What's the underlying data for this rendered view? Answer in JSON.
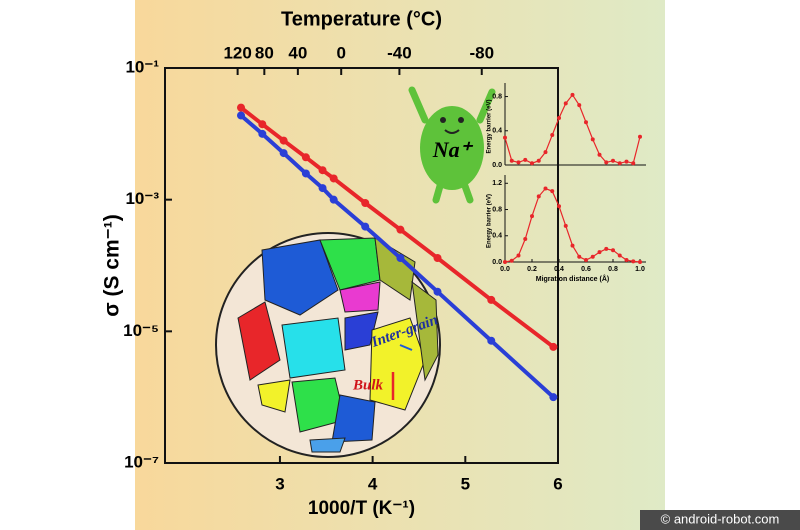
{
  "chart_data": [
    {
      "type": "line",
      "xlabel": "1000/T (K⁻¹)",
      "ylabel": "σ (S cm⁻¹)",
      "x2label": "Temperature (°C)",
      "xlim": [
        1.76,
        6
      ],
      "ylim": [
        1e-07,
        0.1
      ],
      "log_y": true,
      "xticks": [
        3,
        4,
        5,
        6
      ],
      "yticks": [
        {
          "value": 0.1,
          "label": "10⁻¹"
        },
        {
          "value": 0.001,
          "label": "10⁻³"
        },
        {
          "value": 1e-05,
          "label": "10⁻⁵"
        },
        {
          "value": 1e-07,
          "label": "10⁻⁷"
        }
      ],
      "x2ticks": [
        120,
        80,
        40,
        0,
        -40,
        -80
      ],
      "x": [
        2.58,
        2.81,
        3.04,
        3.28,
        3.46,
        3.58,
        3.92,
        4.3,
        4.7,
        5.28,
        5.95
      ],
      "series": [
        {
          "color": "#e8262a",
          "values": [
            0.025,
            0.014,
            0.0079,
            0.0044,
            0.0028,
            0.0021,
            0.00089,
            0.00035,
            0.00013,
            3e-05,
            5.8e-06
          ]
        },
        {
          "color": "#2a3fd6",
          "values": [
            0.019,
            0.01,
            0.0051,
            0.0025,
            0.0015,
            0.001,
            0.00039,
            0.00013,
            4e-05,
            7.2e-06,
            1e-06
          ]
        }
      ]
    },
    {
      "type": "line",
      "ylabel": "Energy barrier (eV)",
      "xlim": [
        0,
        1
      ],
      "ylim": [
        0,
        0.9
      ],
      "yticks": [
        {
          "value": 0,
          "label": "0.0"
        },
        0.4,
        0.8
      ],
      "x": [
        0,
        0.05,
        0.1,
        0.15,
        0.2,
        0.25,
        0.3,
        0.35,
        0.4,
        0.45,
        0.5,
        0.55,
        0.6,
        0.65,
        0.7,
        0.75,
        0.8,
        0.85,
        0.9,
        0.95,
        1.0
      ],
      "series": [
        {
          "color": "#e8262a",
          "values": [
            0.32,
            0.05,
            0.03,
            0.06,
            0.02,
            0.05,
            0.15,
            0.35,
            0.55,
            0.72,
            0.82,
            0.7,
            0.5,
            0.3,
            0.12,
            0.03,
            0.05,
            0.02,
            0.04,
            0.02,
            0.33
          ]
        }
      ]
    },
    {
      "type": "line",
      "ylabel": "Energy barrier (eV)",
      "xlabel": "Migration distance (Å)",
      "xlim": [
        0,
        1
      ],
      "ylim": [
        0,
        1.25
      ],
      "xticks": [
        {
          "value": 0,
          "label": "0.0"
        },
        0.2,
        0.4,
        0.6,
        0.8,
        {
          "value": 1,
          "label": "1.0"
        }
      ],
      "yticks": [
        {
          "value": 0,
          "label": "0.0"
        },
        0.4,
        0.8,
        1.2
      ],
      "x": [
        0,
        0.05,
        0.1,
        0.15,
        0.2,
        0.25,
        0.3,
        0.35,
        0.4,
        0.45,
        0.5,
        0.55,
        0.6,
        0.65,
        0.7,
        0.75,
        0.8,
        0.85,
        0.9,
        0.95,
        1.0
      ],
      "series": [
        {
          "color": "#e8262a",
          "values": [
            0.0,
            0.02,
            0.1,
            0.35,
            0.7,
            1.0,
            1.12,
            1.08,
            0.85,
            0.55,
            0.25,
            0.08,
            0.03,
            0.08,
            0.15,
            0.2,
            0.18,
            0.1,
            0.03,
            0.01,
            0.0
          ]
        }
      ]
    }
  ],
  "annotations": {
    "ion": "Na⁺",
    "inter_grain": "Inter-grain",
    "bulk": "Bulk",
    "watermark": "© android-robot.com"
  }
}
